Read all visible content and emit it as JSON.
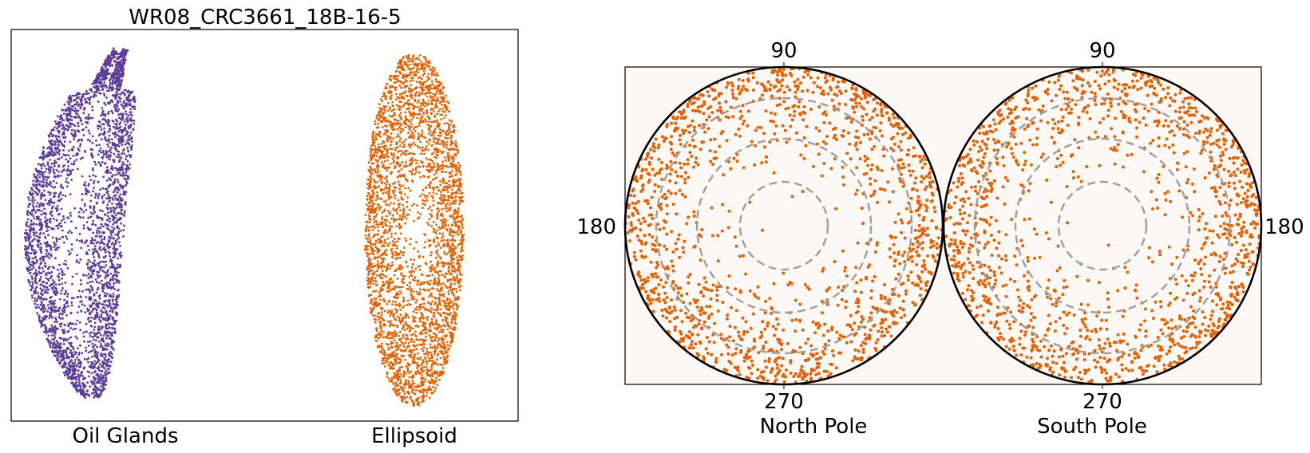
{
  "chart_data": [
    {
      "type": "scatter",
      "title": "WR08_CRC3661_18B-16-5",
      "xlabel": "",
      "ylabel": "",
      "axes_ticks": false,
      "grid": false,
      "categories": [
        "Oil Glands",
        "Ellipsoid"
      ],
      "series": [
        {
          "name": "Oil Glands",
          "color": "#5e3c99",
          "approx_point_count": 9000,
          "shape": "elongated curved oil-gland point cloud"
        },
        {
          "name": "Ellipsoid",
          "color": "#e66101",
          "approx_point_count": 9000,
          "shape": "elongated ellipsoid point cloud"
        }
      ]
    },
    {
      "type": "scatter",
      "projection": "polar stereographic",
      "title": "",
      "background": "#fcf8f6",
      "angle_ticks": [
        "90",
        "180",
        "270",
        "180"
      ],
      "panels": [
        {
          "label": "North Pole",
          "left_tick": "180",
          "top_tick": "90",
          "bottom_tick": "270"
        },
        {
          "label": "South Pole",
          "right_tick": "180",
          "top_tick": "90",
          "bottom_tick": "270"
        }
      ],
      "series": [
        {
          "name": "",
          "color": "#e66101",
          "approx_point_count_per_pole": 3000
        }
      ],
      "reference_rings": 4,
      "ring_color": "#a0a0a0",
      "ring_style": "dashed",
      "grid": true
    }
  ]
}
